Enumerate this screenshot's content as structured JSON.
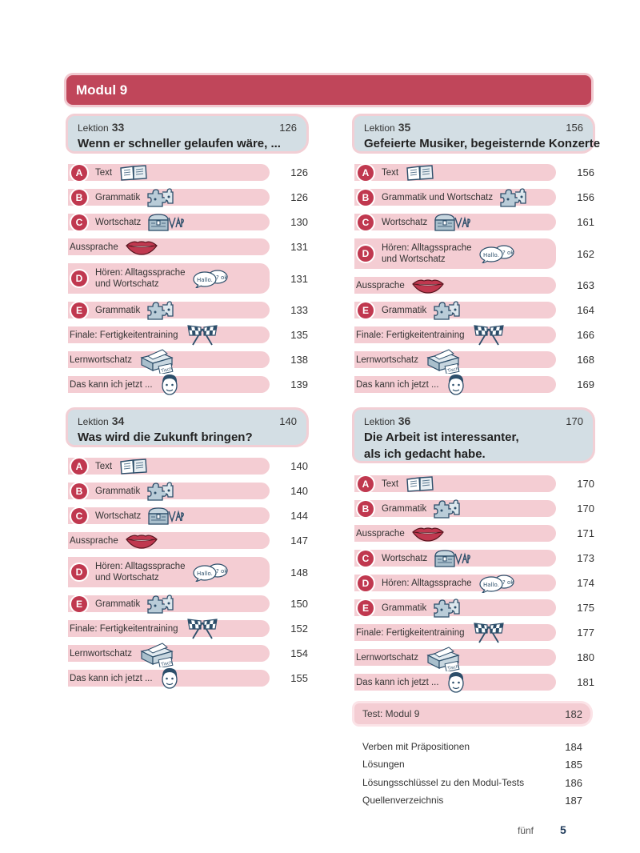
{
  "modul_title": "Modul 9",
  "lektion_label": "Lektion",
  "lessons": [
    {
      "number": "33",
      "page": "126",
      "title": "Wenn er schneller gelaufen wäre, ...",
      "rows": [
        {
          "letter": "A",
          "text": "Text",
          "icon": "book-icon",
          "page": "126"
        },
        {
          "letter": "B",
          "text": "Grammatik",
          "icon": "puzzle-icon",
          "page": "126"
        },
        {
          "letter": "C",
          "text": "Wortschatz",
          "icon": "treasure-chest-icon",
          "page": "130"
        },
        {
          "letter": "",
          "text": "Aussprache",
          "icon": "lips-icon",
          "page": "131"
        },
        {
          "letter": "D",
          "text": "Hören: Alltagssprache",
          "text2": "und Wortschatz",
          "icon": "speech-bubble-icon",
          "bubble_text": "Hallo.",
          "page": "131"
        },
        {
          "letter": "E",
          "text": "Grammatik",
          "icon": "puzzle-icon",
          "page": "133"
        },
        {
          "letter": "",
          "text": "Finale: Fertigkeitentraining",
          "icon": "checkered-flags-icon",
          "page": "135"
        },
        {
          "letter": "",
          "text": "Lernwortschatz",
          "icon": "card-box-icon",
          "card_text": "Tisch",
          "page": "138"
        },
        {
          "letter": "",
          "text": "Das kann ich jetzt ...",
          "icon": "face-icon",
          "page": "139"
        }
      ]
    },
    {
      "number": "34",
      "page": "140",
      "title": "Was wird die Zukunft bringen?",
      "rows": [
        {
          "letter": "A",
          "text": "Text",
          "icon": "book-icon",
          "page": "140"
        },
        {
          "letter": "B",
          "text": "Grammatik",
          "icon": "puzzle-icon",
          "page": "140"
        },
        {
          "letter": "C",
          "text": "Wortschatz",
          "icon": "treasure-chest-icon",
          "page": "144"
        },
        {
          "letter": "",
          "text": "Aussprache",
          "icon": "lips-icon",
          "page": "147"
        },
        {
          "letter": "D",
          "text": "Hören: Alltagssprache",
          "text2": "und Wortschatz",
          "icon": "speech-bubble-icon",
          "bubble_text": "Hallo.",
          "page": "148"
        },
        {
          "letter": "E",
          "text": "Grammatik",
          "icon": "puzzle-icon",
          "page": "150"
        },
        {
          "letter": "",
          "text": "Finale: Fertigkeitentraining",
          "icon": "checkered-flags-icon",
          "page": "152"
        },
        {
          "letter": "",
          "text": "Lernwortschatz",
          "icon": "card-box-icon",
          "card_text": "Tisch",
          "page": "154"
        },
        {
          "letter": "",
          "text": "Das kann ich jetzt ...",
          "icon": "face-icon",
          "page": "155"
        }
      ]
    },
    {
      "number": "35",
      "page": "156",
      "title": "Gefeierte Musiker, begeisternde Konzerte",
      "rows": [
        {
          "letter": "A",
          "text": "Text",
          "icon": "book-icon",
          "page": "156"
        },
        {
          "letter": "B",
          "text": "Grammatik und Wortschatz",
          "icon": "puzzle-icon",
          "page": "156"
        },
        {
          "letter": "C",
          "text": "Wortschatz",
          "icon": "treasure-chest-icon",
          "page": "161"
        },
        {
          "letter": "D",
          "text": "Hören: Alltagssprache",
          "text2": "und Wortschatz",
          "icon": "speech-bubble-icon",
          "bubble_text": "Hallo.",
          "page": "162"
        },
        {
          "letter": "",
          "text": "Aussprache",
          "icon": "lips-icon",
          "page": "163"
        },
        {
          "letter": "E",
          "text": "Grammatik",
          "icon": "puzzle-icon",
          "page": "164"
        },
        {
          "letter": "",
          "text": "Finale: Fertigkeitentraining",
          "icon": "checkered-flags-icon",
          "page": "166"
        },
        {
          "letter": "",
          "text": "Lernwortschatz",
          "icon": "card-box-icon",
          "card_text": "Tisch",
          "page": "168"
        },
        {
          "letter": "",
          "text": "Das kann ich jetzt ...",
          "icon": "face-icon",
          "page": "169"
        }
      ]
    },
    {
      "number": "36",
      "page": "170",
      "title": "Die Arbeit ist interessanter,",
      "title2": "als ich gedacht habe.",
      "rows": [
        {
          "letter": "A",
          "text": "Text",
          "icon": "book-icon",
          "page": "170"
        },
        {
          "letter": "B",
          "text": "Grammatik",
          "icon": "puzzle-icon",
          "page": "170"
        },
        {
          "letter": "",
          "text": "Aussprache",
          "icon": "lips-icon",
          "page": "171"
        },
        {
          "letter": "C",
          "text": "Wortschatz",
          "icon": "treasure-chest-icon",
          "page": "173"
        },
        {
          "letter": "D",
          "text": "Hören: Alltagssprache",
          "icon": "speech-bubble-icon",
          "bubble_text": "Hallo.",
          "page": "174"
        },
        {
          "letter": "E",
          "text": "Grammatik",
          "icon": "puzzle-icon",
          "page": "175"
        },
        {
          "letter": "",
          "text": "Finale: Fertigkeitentraining",
          "icon": "checkered-flags-icon",
          "page": "177"
        },
        {
          "letter": "",
          "text": "Lernwortschatz",
          "icon": "card-box-icon",
          "card_text": "Tisch",
          "page": "180"
        },
        {
          "letter": "",
          "text": "Das kann ich jetzt ...",
          "icon": "face-icon",
          "page": "181"
        }
      ]
    }
  ],
  "test": {
    "label": "Test: Modul 9",
    "page": "182"
  },
  "appendix": [
    {
      "label": "Verben mit Präpositionen",
      "page": "184"
    },
    {
      "label": "Lösungen",
      "page": "185"
    },
    {
      "label": "Lösungsschlüssel zu den Modul-Tests",
      "page": "186"
    },
    {
      "label": "Quellenverzeichnis",
      "page": "187"
    }
  ],
  "footer": {
    "word": "fünf",
    "number": "5"
  },
  "colors": {
    "accent": "#c0384f",
    "row_bg": "#f4cdd3",
    "lesson_box": "#d3dee4"
  }
}
